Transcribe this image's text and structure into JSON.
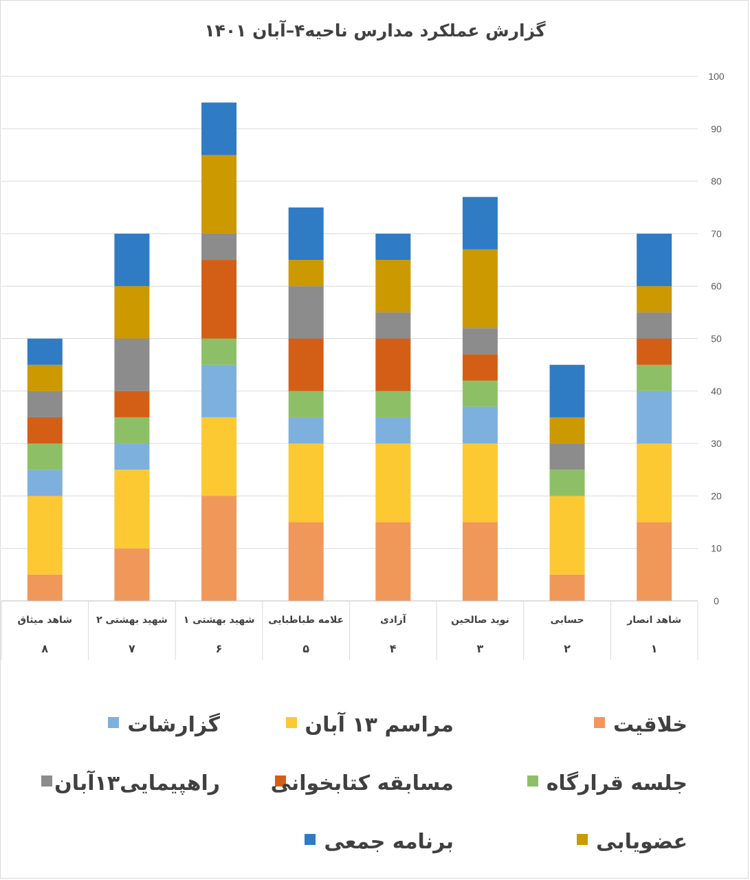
{
  "chart_data": {
    "type": "bar",
    "stacked": true,
    "title": "گزارش عملکرد مدارس ناحیه۴–آبان ۱۴۰۱",
    "ylim": [
      0,
      100
    ],
    "yticks": [
      0,
      10,
      20,
      30,
      40,
      50,
      60,
      70,
      80,
      90,
      100
    ],
    "y_axis_side": "right",
    "grid": true,
    "legend_position": "bottom",
    "categories": [
      "شاهد میثاق",
      "شهید بهشتی ۲",
      "شهید بهشتی ۱",
      "علامه طباطبایی",
      "آزادی",
      "نوید صالحین",
      "حسابی",
      "شاهد انصار"
    ],
    "ranks": [
      "۸",
      "۷",
      "۶",
      "۵",
      "۴",
      "۳",
      "۲",
      "۱"
    ],
    "series": [
      {
        "name": "خلاقیت",
        "color": "#f0985a",
        "values": [
          5,
          10,
          20,
          15,
          15,
          15,
          5,
          15
        ]
      },
      {
        "name": "مراسم ۱۳ آبان",
        "color": "#fcc933",
        "values": [
          15,
          15,
          15,
          15,
          15,
          15,
          15,
          15
        ]
      },
      {
        "name": "گزارشات",
        "color": "#7eb0de",
        "values": [
          5,
          5,
          10,
          5,
          5,
          7,
          0,
          10
        ]
      },
      {
        "name": "جلسه قرارگاه",
        "color": "#8dc066",
        "values": [
          5,
          5,
          5,
          5,
          5,
          5,
          5,
          5
        ]
      },
      {
        "name": "مسابقه کتابخوانی",
        "color": "#d35f16",
        "values": [
          5,
          5,
          15,
          10,
          10,
          5,
          0,
          5
        ]
      },
      {
        "name": "راهپیمایی۱۳آبان",
        "color": "#8c8c8c",
        "values": [
          5,
          10,
          5,
          10,
          5,
          5,
          5,
          5
        ]
      },
      {
        "name": "عضویابی",
        "color": "#cc9900",
        "values": [
          5,
          10,
          15,
          5,
          10,
          15,
          5,
          5
        ]
      },
      {
        "name": "برنامه جمعی",
        "color": "#2f7bc4",
        "values": [
          5,
          10,
          10,
          10,
          5,
          10,
          10,
          10
        ]
      }
    ]
  }
}
